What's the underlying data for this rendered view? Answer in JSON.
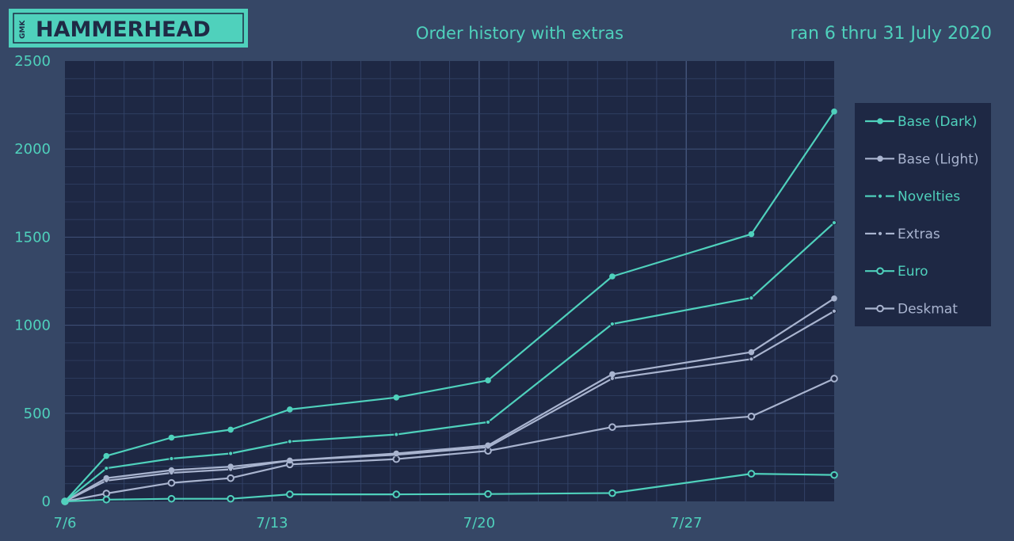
{
  "logo": {
    "prefix": "GMK",
    "name": "HAMMERHEAD"
  },
  "colors": {
    "background": "#364766",
    "plot_background": "#1e2844",
    "teal": "#4fd1bc",
    "light": "#a9b4cf",
    "grid": "#34446a"
  },
  "chart_data": {
    "type": "line",
    "title": "Order history with extras",
    "subtitle": "ran 6 thru 31 July 2020",
    "xlabel": "",
    "ylabel": "",
    "xlim": [
      6,
      32
    ],
    "ylim": [
      0,
      2500
    ],
    "x_ticks": [
      {
        "value": 6,
        "label": "7/6"
      },
      {
        "value": 13,
        "label": "7/13"
      },
      {
        "value": 20,
        "label": "7/20"
      },
      {
        "value": 27,
        "label": "7/27"
      }
    ],
    "y_ticks": [
      {
        "value": 0,
        "label": "0"
      },
      {
        "value": 500,
        "label": "500"
      },
      {
        "value": 1000,
        "label": "1000"
      },
      {
        "value": 1500,
        "label": "1500"
      },
      {
        "value": 2000,
        "label": "2000"
      },
      {
        "value": 2500,
        "label": "2500"
      }
    ],
    "grid": true,
    "legend_position": "right",
    "x": [
      6,
      7.4,
      9.6,
      11.6,
      13.6,
      17.2,
      20.3,
      24.5,
      29.2,
      32
    ],
    "series": [
      {
        "name": "Base (Dark)",
        "color": "#4fd1bc",
        "marker": "filled-dot",
        "values": [
          0,
          258,
          362,
          407,
          522,
          590,
          687,
          1277,
          1517,
          2213
        ]
      },
      {
        "name": "Base (Light)",
        "color": "#a9b4cf",
        "marker": "filled-dot",
        "values": [
          0,
          132,
          177,
          197,
          232,
          272,
          318,
          722,
          847,
          1152
        ]
      },
      {
        "name": "Novelties",
        "color": "#4fd1bc",
        "marker": "dash-dot",
        "values": [
          0,
          188,
          243,
          272,
          340,
          380,
          450,
          1007,
          1155,
          1582
        ]
      },
      {
        "name": "Extras",
        "color": "#a9b4cf",
        "marker": "dash-dot",
        "values": [
          0,
          118,
          162,
          182,
          232,
          265,
          308,
          698,
          808,
          1080
        ]
      },
      {
        "name": "Euro",
        "color": "#4fd1bc",
        "marker": "open-circle",
        "values": [
          0,
          10,
          15,
          15,
          40,
          40,
          42,
          47,
          157,
          150
        ]
      },
      {
        "name": "Deskmat",
        "color": "#a9b4cf",
        "marker": "open-circle",
        "values": [
          0,
          45,
          105,
          132,
          210,
          240,
          287,
          422,
          482,
          697
        ]
      }
    ]
  }
}
